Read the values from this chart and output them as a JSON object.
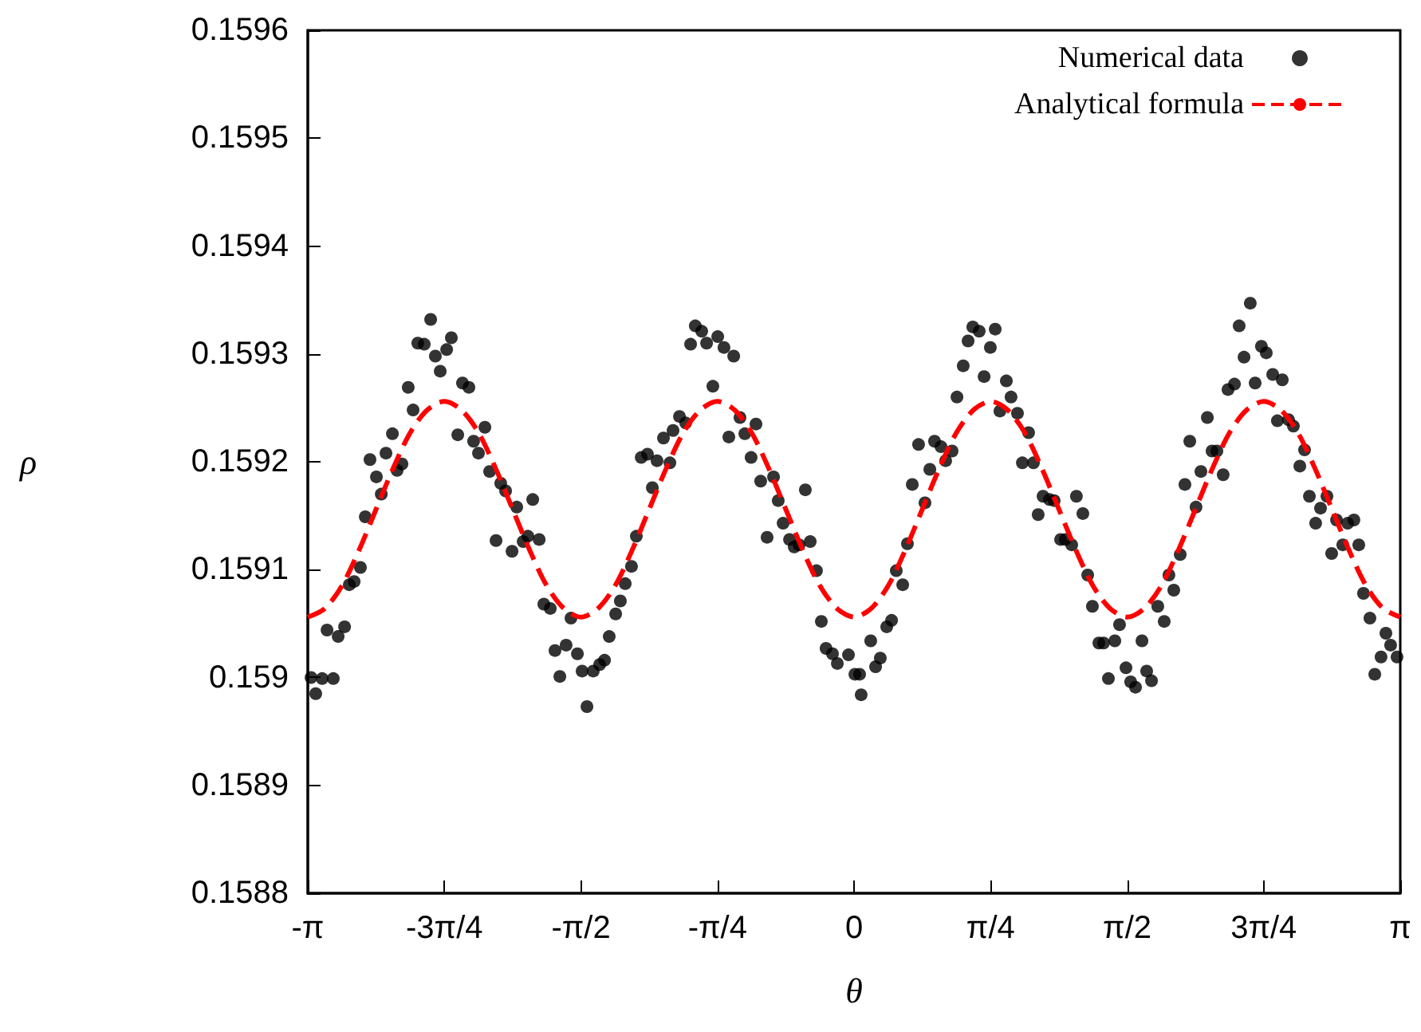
{
  "chart_data": {
    "type": "scatter",
    "xlabel": "θ",
    "ylabel": "ρ",
    "xlim": [
      -3.1416,
      3.1416
    ],
    "ylim": [
      0.1588,
      0.1596
    ],
    "xticks": [
      {
        "value": -3.1416,
        "label": "-π"
      },
      {
        "value": -2.3562,
        "label": "-3π/4"
      },
      {
        "value": -1.5708,
        "label": "-π/2"
      },
      {
        "value": -0.7854,
        "label": "-π/4"
      },
      0,
      {
        "value": 0.7854,
        "label": "π/4"
      },
      {
        "value": 1.5708,
        "label": "π/2"
      },
      {
        "value": 2.3562,
        "label": "3π/4"
      },
      {
        "value": 3.1416,
        "label": "π"
      }
    ],
    "yticks": [
      0.1588,
      0.1589,
      0.159,
      0.1591,
      0.1592,
      0.1593,
      0.1594,
      0.1595,
      0.1596
    ],
    "legend": "top right",
    "series": [
      {
        "name": "Numerical data",
        "type": "scatter",
        "color": "#000000",
        "marker": "circle",
        "x": [
          -3.123,
          -3.096,
          -3.059,
          -2.995,
          -3.031,
          -2.967,
          -2.93,
          -2.903,
          -2.875,
          -2.839,
          -2.811,
          -2.784,
          -2.747,
          -2.719,
          -2.692,
          -2.655,
          -2.628,
          -2.6,
          -2.564,
          -2.536,
          -2.509,
          -2.472,
          -2.435,
          -2.408,
          -2.38,
          -2.343,
          -2.316,
          -2.279,
          -2.252,
          -2.215,
          -2.188,
          -2.16,
          -2.123,
          -2.096,
          -2.032,
          -2.004,
          -2.059,
          -1.967,
          -1.94,
          -1.903,
          -1.876,
          -1.848,
          -1.811,
          -1.784,
          -1.747,
          -1.72,
          -1.692,
          -1.656,
          -1.628,
          -1.591,
          -1.564,
          -1.536,
          -1.5,
          -1.463,
          -1.435,
          -1.408,
          -1.371,
          -1.344,
          -1.316,
          -1.28,
          -1.252,
          -1.224,
          -1.188,
          -1.16,
          -1.133,
          -1.096,
          -1.059,
          -1.041,
          -1.004,
          -0.968,
          -0.94,
          -0.913,
          -0.876,
          -0.848,
          -0.812,
          -0.784,
          -0.748,
          -0.72,
          -0.692,
          -0.656,
          -0.628,
          -0.592,
          -0.564,
          -0.537,
          -0.5,
          -0.463,
          -0.436,
          -0.408,
          -0.371,
          -0.344,
          -0.316,
          -0.28,
          -0.252,
          -0.216,
          -0.188,
          -0.161,
          -0.124,
          -0.096,
          -0.032,
          0.005,
          0.041,
          0.032,
          0.096,
          0.124,
          0.151,
          0.188,
          0.216,
          0.243,
          0.28,
          0.307,
          0.335,
          0.408,
          0.371,
          0.436,
          0.463,
          0.5,
          0.527,
          0.564,
          0.592,
          0.628,
          0.656,
          0.683,
          0.72,
          0.748,
          0.784,
          0.812,
          0.839,
          0.876,
          0.903,
          0.94,
          0.968,
          1.004,
          1.032,
          1.059,
          1.087,
          1.124,
          1.151,
          1.188,
          1.215,
          1.252,
          1.279,
          1.316,
          1.344,
          1.371,
          1.408,
          1.435,
          1.463,
          1.5,
          1.527,
          1.564,
          1.591,
          1.619,
          1.656,
          1.683,
          1.711,
          1.747,
          1.784,
          1.811,
          1.839,
          1.876,
          1.903,
          1.931,
          1.967,
          1.995,
          2.032,
          2.059,
          2.087,
          2.123,
          2.151,
          2.188,
          2.215,
          2.243,
          2.279,
          2.307,
          2.343,
          2.371,
          2.408,
          2.463,
          2.435,
          2.499,
          2.527,
          2.564,
          2.591,
          2.619,
          2.655,
          2.683,
          2.72,
          2.747,
          2.775,
          2.811,
          2.839,
          2.875,
          2.903,
          2.93,
          2.967,
          2.995,
          3.031,
          3.059,
          3.086,
          3.123
        ],
        "values": [
          0.159,
          0.158985,
          0.158999,
          0.158999,
          0.159044,
          0.159038,
          0.159047,
          0.159086,
          0.159089,
          0.159102,
          0.159149,
          0.159202,
          0.159186,
          0.15917,
          0.159208,
          0.159226,
          0.159192,
          0.159198,
          0.159269,
          0.159248,
          0.15931,
          0.159309,
          0.159332,
          0.159298,
          0.159284,
          0.159304,
          0.159315,
          0.159225,
          0.159273,
          0.159269,
          0.159219,
          0.159208,
          0.159232,
          0.159191,
          0.15918,
          0.159173,
          0.159127,
          0.159117,
          0.159158,
          0.159126,
          0.159131,
          0.159165,
          0.159128,
          0.159068,
          0.159064,
          0.159025,
          0.159001,
          0.15903,
          0.159055,
          0.159022,
          0.159006,
          0.158973,
          0.159006,
          0.159012,
          0.159016,
          0.159038,
          0.159059,
          0.159071,
          0.159087,
          0.159103,
          0.159131,
          0.159204,
          0.159207,
          0.159176,
          0.159201,
          0.159222,
          0.159199,
          0.159229,
          0.159242,
          0.159236,
          0.159309,
          0.159326,
          0.159321,
          0.15931,
          0.15927,
          0.159316,
          0.159306,
          0.159223,
          0.159298,
          0.159241,
          0.159226,
          0.159204,
          0.159235,
          0.159182,
          0.15913,
          0.159186,
          0.159164,
          0.159143,
          0.159128,
          0.159121,
          0.159123,
          0.159174,
          0.159126,
          0.159099,
          0.159052,
          0.159027,
          0.159022,
          0.159013,
          0.159021,
          0.159003,
          0.158984,
          0.159003,
          0.159034,
          0.15901,
          0.159018,
          0.159047,
          0.159053,
          0.159099,
          0.159086,
          0.159124,
          0.159179,
          0.159162,
          0.159216,
          0.159193,
          0.159219,
          0.159214,
          0.159201,
          0.15921,
          0.15926,
          0.159289,
          0.159312,
          0.159325,
          0.159321,
          0.159279,
          0.159306,
          0.159323,
          0.159247,
          0.159275,
          0.15926,
          0.159245,
          0.159199,
          0.159227,
          0.159199,
          0.159151,
          0.159168,
          0.159165,
          0.159164,
          0.159128,
          0.159128,
          0.159123,
          0.159168,
          0.159152,
          0.159095,
          0.159066,
          0.159032,
          0.159032,
          0.158999,
          0.159034,
          0.159049,
          0.159009,
          0.158996,
          0.158991,
          0.159034,
          0.159006,
          0.158997,
          0.159066,
          0.159052,
          0.159095,
          0.159081,
          0.159114,
          0.159179,
          0.159219,
          0.159158,
          0.159191,
          0.159241,
          0.15921,
          0.15921,
          0.159188,
          0.159267,
          0.159272,
          0.159326,
          0.159297,
          0.159347,
          0.159273,
          0.159307,
          0.159301,
          0.159281,
          0.159276,
          0.159238,
          0.159239,
          0.159233,
          0.159196,
          0.159211,
          0.159168,
          0.159143,
          0.159157,
          0.159168,
          0.159115,
          0.159146,
          0.159123,
          0.159143,
          0.159146,
          0.159123,
          0.159078,
          0.159055,
          0.159003,
          0.159019,
          0.159041,
          0.15903,
          0.159019
        ]
      },
      {
        "name": "Analytical formula",
        "type": "line",
        "color": "#ff0000",
        "line_style": "dashed",
        "marker": "none",
        "x": [
          -3.1416,
          -3.0434,
          -2.9452,
          -2.8471,
          -2.7489,
          -2.6507,
          -2.5525,
          -2.4544,
          -2.3562,
          -2.258,
          -2.1598,
          -2.0617,
          -1.9635,
          -1.8653,
          -1.7671,
          -1.669,
          -1.5708,
          -1.4726,
          -1.3744,
          -1.2763,
          -1.1781,
          -1.0799,
          -0.9817,
          -0.8836,
          -0.7854,
          -0.6872,
          -0.589,
          -0.4909,
          -0.3927,
          -0.2945,
          -0.1963,
          -0.0982,
          0,
          0.0982,
          0.1963,
          0.2945,
          0.3927,
          0.4909,
          0.589,
          0.6872,
          0.7854,
          0.8836,
          0.9817,
          1.0799,
          1.1781,
          1.2763,
          1.3744,
          1.4726,
          1.5708,
          1.669,
          1.7671,
          1.8653,
          1.9635,
          2.0617,
          2.1598,
          2.258,
          2.3562,
          2.4544,
          2.5525,
          2.6507,
          2.7489,
          2.8471,
          2.9452,
          3.0434,
          3.1416
        ],
        "values": [
          0.159056,
          0.159064,
          0.159085,
          0.159118,
          0.159156,
          0.159194,
          0.159227,
          0.159248,
          0.159256,
          0.159248,
          0.159227,
          0.159194,
          0.159156,
          0.159118,
          0.159085,
          0.159064,
          0.159056,
          0.159064,
          0.159085,
          0.159118,
          0.159156,
          0.159194,
          0.159227,
          0.159248,
          0.159256,
          0.159248,
          0.159227,
          0.159194,
          0.159156,
          0.159118,
          0.159085,
          0.159064,
          0.159056,
          0.159064,
          0.159085,
          0.159118,
          0.159156,
          0.159194,
          0.159227,
          0.159248,
          0.159256,
          0.159248,
          0.159227,
          0.159194,
          0.159156,
          0.159118,
          0.159085,
          0.159064,
          0.159056,
          0.159064,
          0.159085,
          0.159118,
          0.159156,
          0.159194,
          0.159227,
          0.159248,
          0.159256,
          0.159248,
          0.159227,
          0.159194,
          0.159156,
          0.159118,
          0.159085,
          0.159064,
          0.159056
        ]
      }
    ]
  }
}
